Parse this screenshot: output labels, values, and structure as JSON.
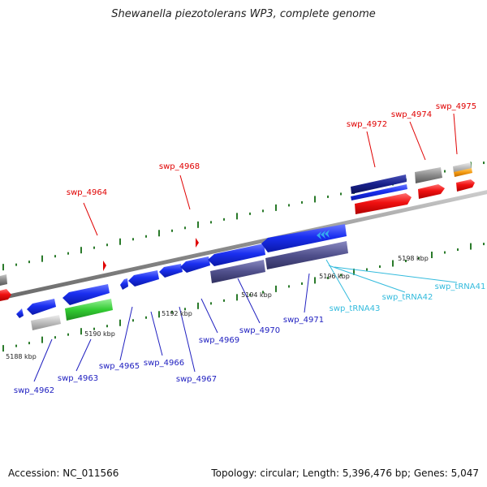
{
  "title": "Shewanella piezotolerans WP3, complete genome",
  "accession": "Accession: NC_011566",
  "topology": "Topology: circular; Length: 5,396,476 bp; Genes: 5,047",
  "colors": {
    "forward_label": "#e00000",
    "reverse_label": "#2020c0",
    "trna_label": "#33bbdd",
    "gene_blue": "#1a2ff0",
    "gene_red": "#f01010",
    "gene_navy": "#18208a",
    "gene_slate": "#50508c",
    "gene_green": "#33cc33",
    "gene_grey": "#8a8a8a",
    "gene_orange": "#f49a10",
    "trna_arrow": "#33aaee",
    "genome_line": "#909090",
    "tick_green": "#2a7a2a"
  },
  "ticks": [
    {
      "label": "5188 kbp"
    },
    {
      "label": "5190 kbp"
    },
    {
      "label": "5192 kbp"
    },
    {
      "label": "5194 kbp"
    },
    {
      "label": "5196 kbp"
    },
    {
      "label": "5198 kbp"
    }
  ],
  "forward_labels": [
    {
      "text": "swp_4964"
    },
    {
      "text": "swp_4968"
    },
    {
      "text": "swp_4972"
    },
    {
      "text": "swp_4974"
    },
    {
      "text": "swp_4975"
    }
  ],
  "reverse_labels": [
    {
      "text": "swp_4962"
    },
    {
      "text": "swp_4963"
    },
    {
      "text": "swp_4965"
    },
    {
      "text": "swp_4966"
    },
    {
      "text": "swp_4967"
    },
    {
      "text": "swp_4969"
    },
    {
      "text": "swp_4970"
    },
    {
      "text": "swp_4971"
    }
  ],
  "trna_labels": [
    {
      "text": "swp_tRNA43"
    },
    {
      "text": "swp_tRNA42"
    },
    {
      "text": "swp_tRNA41"
    }
  ]
}
